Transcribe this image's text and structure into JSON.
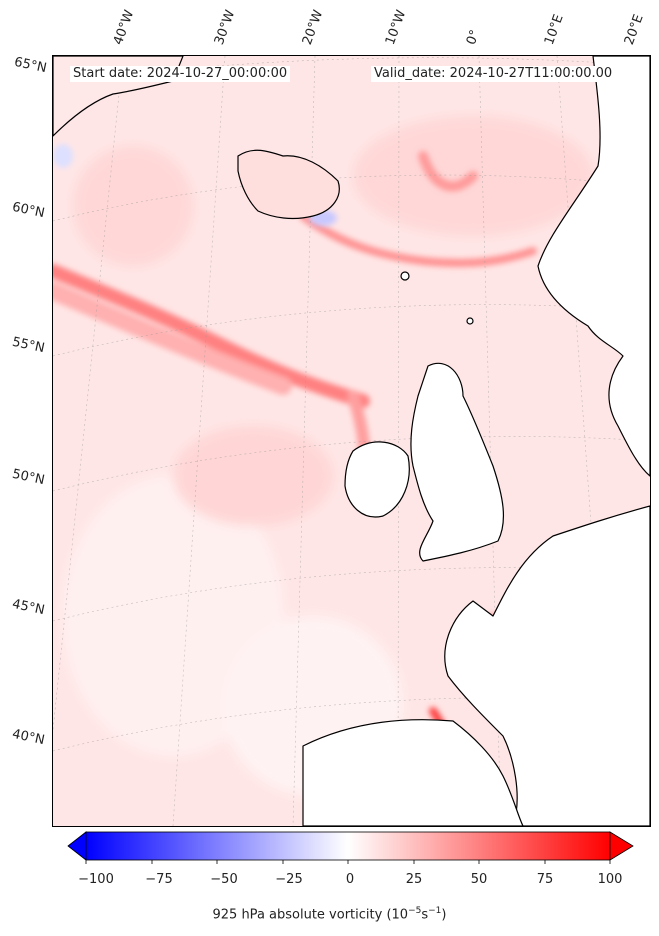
{
  "map": {
    "start_date": "Start date: 2024-10-27_00:00:00",
    "valid_date": "Valid_date: 2024-10-27T11:00:00.00",
    "lon_labels": [
      "40°W",
      "30°W",
      "20°W",
      "10°W",
      "0°",
      "10°E",
      "20°E"
    ],
    "lat_labels": [
      "65°N",
      "60°N",
      "55°N",
      "50°N",
      "45°N",
      "40°N"
    ]
  },
  "colorbar": {
    "ticks": [
      "−100",
      "−75",
      "−50",
      "−25",
      "0",
      "25",
      "50",
      "75",
      "100"
    ],
    "label_main": "925 hPa absolute vorticity (10",
    "label_exp1": "−5",
    "label_mid": "s",
    "label_exp2": "−1",
    "label_end": ")",
    "min_color": "#0000ff",
    "mid_color": "#ffffff",
    "max_color": "#ff0000",
    "range": [
      -100,
      100
    ],
    "extend": "both"
  },
  "colors": {
    "land": "#ffffff",
    "coast": "#000000",
    "ocean_field": "#ffe0e0"
  }
}
